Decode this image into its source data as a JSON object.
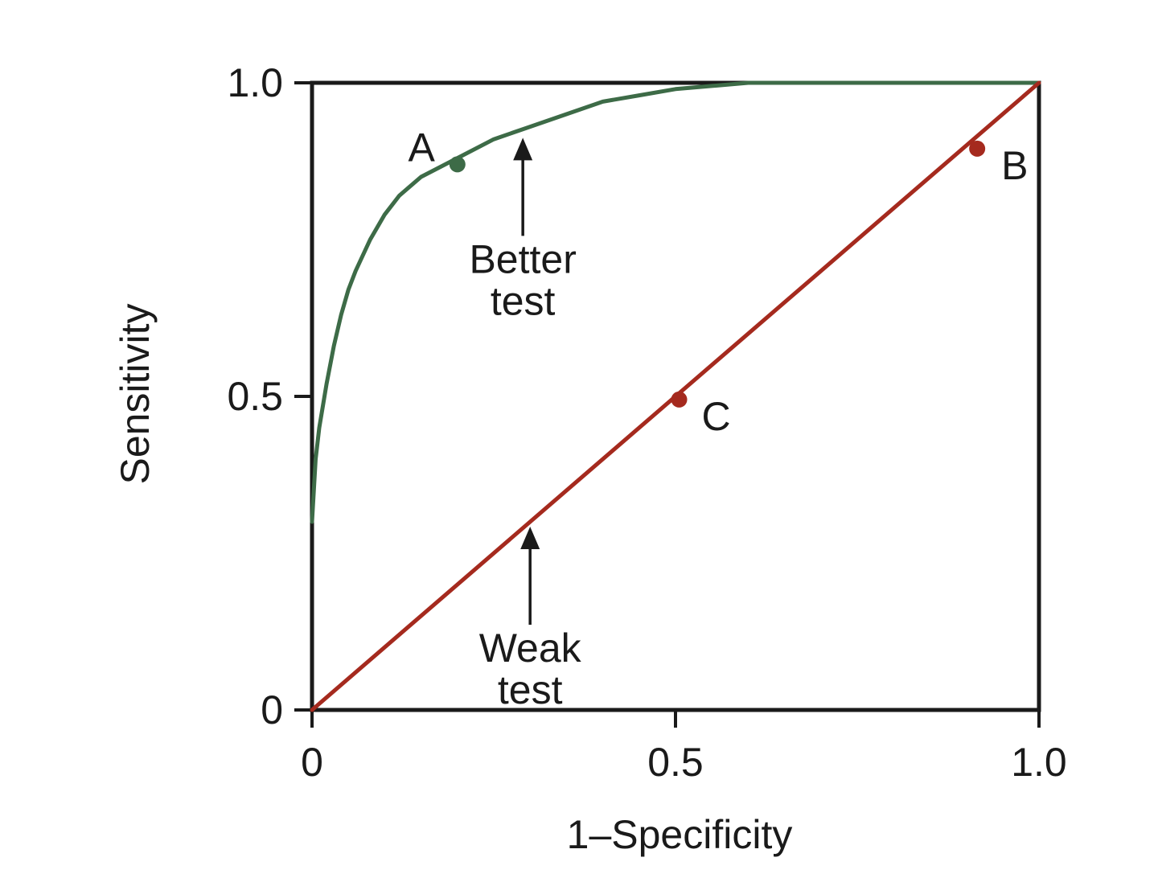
{
  "chart_data": {
    "type": "line",
    "xlabel": "1–Specificity",
    "ylabel": "Sensitivity",
    "xlim": [
      0,
      1.0
    ],
    "ylim": [
      0,
      1.0
    ],
    "grid": false,
    "x_ticks": [
      {
        "value": 0,
        "label": "0"
      },
      {
        "value": 0.5,
        "label": "0.5"
      },
      {
        "value": 1.0,
        "label": "1.0"
      }
    ],
    "y_ticks": [
      {
        "value": 0,
        "label": "0"
      },
      {
        "value": 0.5,
        "label": "0.5"
      },
      {
        "value": 1.0,
        "label": "1.0"
      }
    ],
    "series": [
      {
        "color": "#3d6b47",
        "x": [
          0,
          0.005,
          0.01,
          0.02,
          0.03,
          0.04,
          0.05,
          0.06,
          0.08,
          0.1,
          0.12,
          0.15,
          0.2,
          0.25,
          0.3,
          0.35,
          0.4,
          0.45,
          0.5,
          0.55,
          0.6,
          0.7,
          0.8,
          0.9,
          1.0
        ],
        "y": [
          0.3,
          0.4,
          0.45,
          0.52,
          0.58,
          0.63,
          0.67,
          0.7,
          0.75,
          0.79,
          0.82,
          0.85,
          0.88,
          0.91,
          0.93,
          0.95,
          0.97,
          0.98,
          0.99,
          0.995,
          1.0,
          1.0,
          1.0,
          1.0,
          1.0
        ]
      },
      {
        "color": "#a52a1e",
        "x": [
          0,
          1.0
        ],
        "y": [
          0,
          1.0
        ]
      }
    ],
    "points": [
      {
        "label": "A",
        "x": 0.2,
        "y": 0.87,
        "color": "#3d6b47"
      },
      {
        "label": "B",
        "x": 0.915,
        "y": 0.895,
        "color": "#a52a1e"
      },
      {
        "label": "C",
        "x": 0.505,
        "y": 0.495,
        "color": "#a52a1e"
      }
    ],
    "annotations": [
      {
        "lines": [
          "Better",
          "test"
        ],
        "arrow_to": {
          "x": 0.29,
          "y": 0.92
        },
        "text_at": {
          "x": 0.29,
          "y": 0.72
        }
      },
      {
        "lines": [
          "Weak",
          "test"
        ],
        "arrow_to": {
          "x": 0.3,
          "y": 0.3
        },
        "text_at": {
          "x": 0.3,
          "y": 0.1
        }
      }
    ]
  }
}
